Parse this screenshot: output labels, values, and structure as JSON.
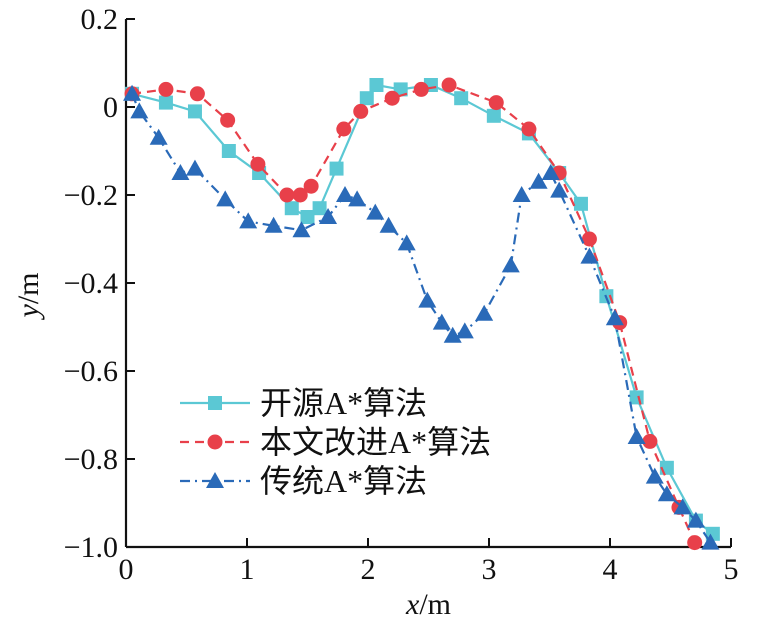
{
  "chart_data": {
    "type": "line",
    "title": "",
    "xlabel": {
      "var": "x",
      "unit": "/m"
    },
    "ylabel": {
      "var": "y",
      "unit": "/m"
    },
    "xlim": [
      0,
      5
    ],
    "ylim": [
      -1.0,
      0.2
    ],
    "xticks": [
      0,
      1,
      2,
      3,
      4,
      5
    ],
    "xtick_labels": [
      "0",
      "1",
      "2",
      "3",
      "4",
      "5"
    ],
    "yticks": [
      0.2,
      0,
      -0.2,
      -0.4,
      -0.6,
      -0.8,
      -1.0
    ],
    "ytick_labels": [
      "0.2",
      "0",
      "−0.2",
      "−0.4",
      "−0.6",
      "−0.8",
      "−1.0"
    ],
    "grid": false,
    "legend_position": "lower-left",
    "series": [
      {
        "name": "开源A*算法",
        "color": "#5bc8d4",
        "line_style": "solid",
        "marker": "square",
        "x": [
          0.05,
          0.33,
          0.57,
          0.85,
          1.1,
          1.37,
          1.5,
          1.6,
          1.74,
          1.99,
          2.07,
          2.27,
          2.52,
          2.77,
          3.04,
          3.33,
          3.58,
          3.76,
          3.97,
          4.22,
          4.47,
          4.71,
          4.85
        ],
        "y": [
          0.03,
          0.01,
          -0.01,
          -0.1,
          -0.15,
          -0.23,
          -0.25,
          -0.23,
          -0.14,
          0.02,
          0.05,
          0.04,
          0.05,
          0.02,
          -0.02,
          -0.06,
          -0.15,
          -0.22,
          -0.43,
          -0.66,
          -0.82,
          -0.94,
          -0.97
        ]
      },
      {
        "name": "本文改进A*算法",
        "color": "#e8404a",
        "line_style": "dashed",
        "marker": "circle",
        "x": [
          0.05,
          0.33,
          0.59,
          0.84,
          1.09,
          1.33,
          1.44,
          1.53,
          1.8,
          1.94,
          2.2,
          2.44,
          2.67,
          3.06,
          3.33,
          3.58,
          3.83,
          4.08,
          4.33,
          4.57,
          4.7
        ],
        "y": [
          0.03,
          0.04,
          0.03,
          -0.03,
          -0.13,
          -0.2,
          -0.2,
          -0.18,
          -0.05,
          -0.01,
          0.02,
          0.04,
          0.05,
          0.01,
          -0.05,
          -0.15,
          -0.3,
          -0.49,
          -0.76,
          -0.91,
          -0.99
        ]
      },
      {
        "name": "传统A*算法",
        "color": "#2a6ab8",
        "line_style": "dashdot",
        "marker": "triangle",
        "x": [
          0.05,
          0.11,
          0.27,
          0.45,
          0.57,
          0.82,
          1.01,
          1.22,
          1.45,
          1.67,
          1.81,
          1.91,
          2.06,
          2.17,
          2.32,
          2.49,
          2.61,
          2.7,
          2.8,
          2.96,
          3.18,
          3.27,
          3.41,
          3.51,
          3.58,
          3.83,
          4.04,
          4.22,
          4.37,
          4.47,
          4.6,
          4.71,
          4.83
        ],
        "y": [
          0.03,
          -0.01,
          -0.07,
          -0.15,
          -0.14,
          -0.21,
          -0.26,
          -0.27,
          -0.28,
          -0.25,
          -0.2,
          -0.21,
          -0.24,
          -0.27,
          -0.31,
          -0.44,
          -0.49,
          -0.52,
          -0.51,
          -0.47,
          -0.36,
          -0.2,
          -0.17,
          -0.15,
          -0.19,
          -0.34,
          -0.48,
          -0.75,
          -0.84,
          -0.88,
          -0.91,
          -0.94,
          -0.99
        ]
      }
    ]
  }
}
